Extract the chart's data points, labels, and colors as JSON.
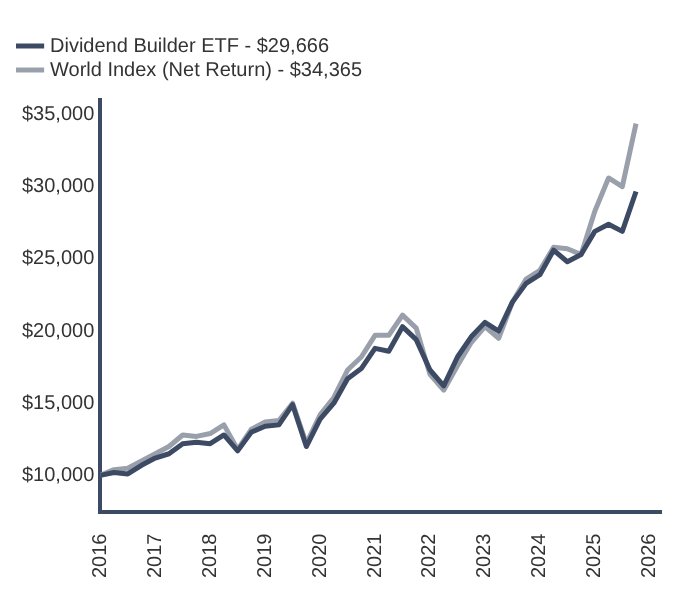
{
  "chart_data": {
    "type": "line",
    "x": [
      2016,
      2016.25,
      2016.5,
      2016.75,
      2017,
      2017.25,
      2017.5,
      2017.75,
      2018,
      2018.25,
      2018.5,
      2018.75,
      2019,
      2019.25,
      2019.5,
      2019.75,
      2020,
      2020.25,
      2020.5,
      2020.75,
      2021,
      2021.25,
      2021.5,
      2021.75,
      2022,
      2022.25,
      2022.5,
      2022.75,
      2023,
      2023.25,
      2023.5,
      2023.75,
      2024,
      2024.25,
      2024.5,
      2024.75,
      2025,
      2025.25,
      2025.5,
      2025.75
    ],
    "series": [
      {
        "name": "Dividend Builder ETF - $29,666",
        "color": "#3d4a63",
        "values": [
          10000,
          10200,
          10100,
          10700,
          11200,
          11500,
          12200,
          12300,
          12200,
          12800,
          11700,
          13000,
          13400,
          13500,
          14900,
          12000,
          13900,
          15000,
          16700,
          17400,
          18800,
          18600,
          20300,
          19400,
          17300,
          16200,
          18200,
          19600,
          20600,
          20000,
          22000,
          23300,
          23900,
          25600,
          24800,
          25300,
          26900,
          27400,
          26900,
          29666
        ]
      },
      {
        "name": "World Index (Net Return) - $34,365",
        "color": "#9aa0ab",
        "values": [
          10000,
          10400,
          10500,
          11000,
          11500,
          12000,
          12800,
          12700,
          12900,
          13500,
          11800,
          13200,
          13700,
          13800,
          15000,
          12200,
          14200,
          15400,
          17300,
          18200,
          19700,
          19700,
          21100,
          20200,
          17000,
          15900,
          17600,
          19200,
          20300,
          19500,
          22000,
          23600,
          24200,
          25800,
          25700,
          25300,
          28300,
          30600,
          30000,
          34365
        ]
      }
    ],
    "xlim": [
      2016,
      2026.2
    ],
    "xticks": [
      2016,
      2017,
      2018,
      2019,
      2020,
      2021,
      2022,
      2023,
      2024,
      2025,
      2026
    ],
    "ylim": [
      7500,
      36000
    ],
    "yticks": [
      {
        "value": 10000,
        "label": "$10,000"
      },
      {
        "value": 15000,
        "label": "$15,000"
      },
      {
        "value": 20000,
        "label": "$20,000"
      },
      {
        "value": 25000,
        "label": "$25,000"
      },
      {
        "value": 30000,
        "label": "$30,000"
      },
      {
        "value": 35000,
        "label": "$35,000"
      }
    ],
    "grid": false,
    "legend": "top",
    "marker": "none",
    "line_style": "solid"
  }
}
